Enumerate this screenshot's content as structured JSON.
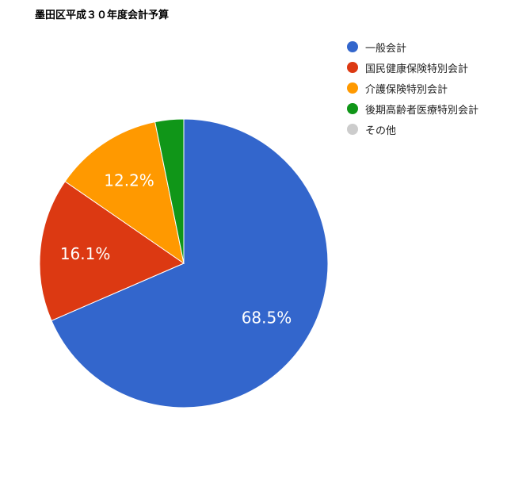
{
  "chart_data": {
    "type": "pie",
    "title": "墨田区平成３０年度会計予算",
    "slices": [
      {
        "name": "一般会計",
        "value": 68.5,
        "label": "68.5%",
        "color": "#3366cc"
      },
      {
        "name": "国民健康保険特別会計",
        "value": 16.1,
        "label": "16.1%",
        "color": "#dc3912"
      },
      {
        "name": "介護保険特別会計",
        "value": 12.2,
        "label": "12.2%",
        "color": "#ff9900"
      },
      {
        "name": "後期高齢者医療特別会計",
        "value": 3.2,
        "label": "",
        "color": "#109618"
      },
      {
        "name": "その他",
        "value": 0,
        "label": "",
        "color": "#cccccc"
      }
    ],
    "legend_position": "right"
  }
}
